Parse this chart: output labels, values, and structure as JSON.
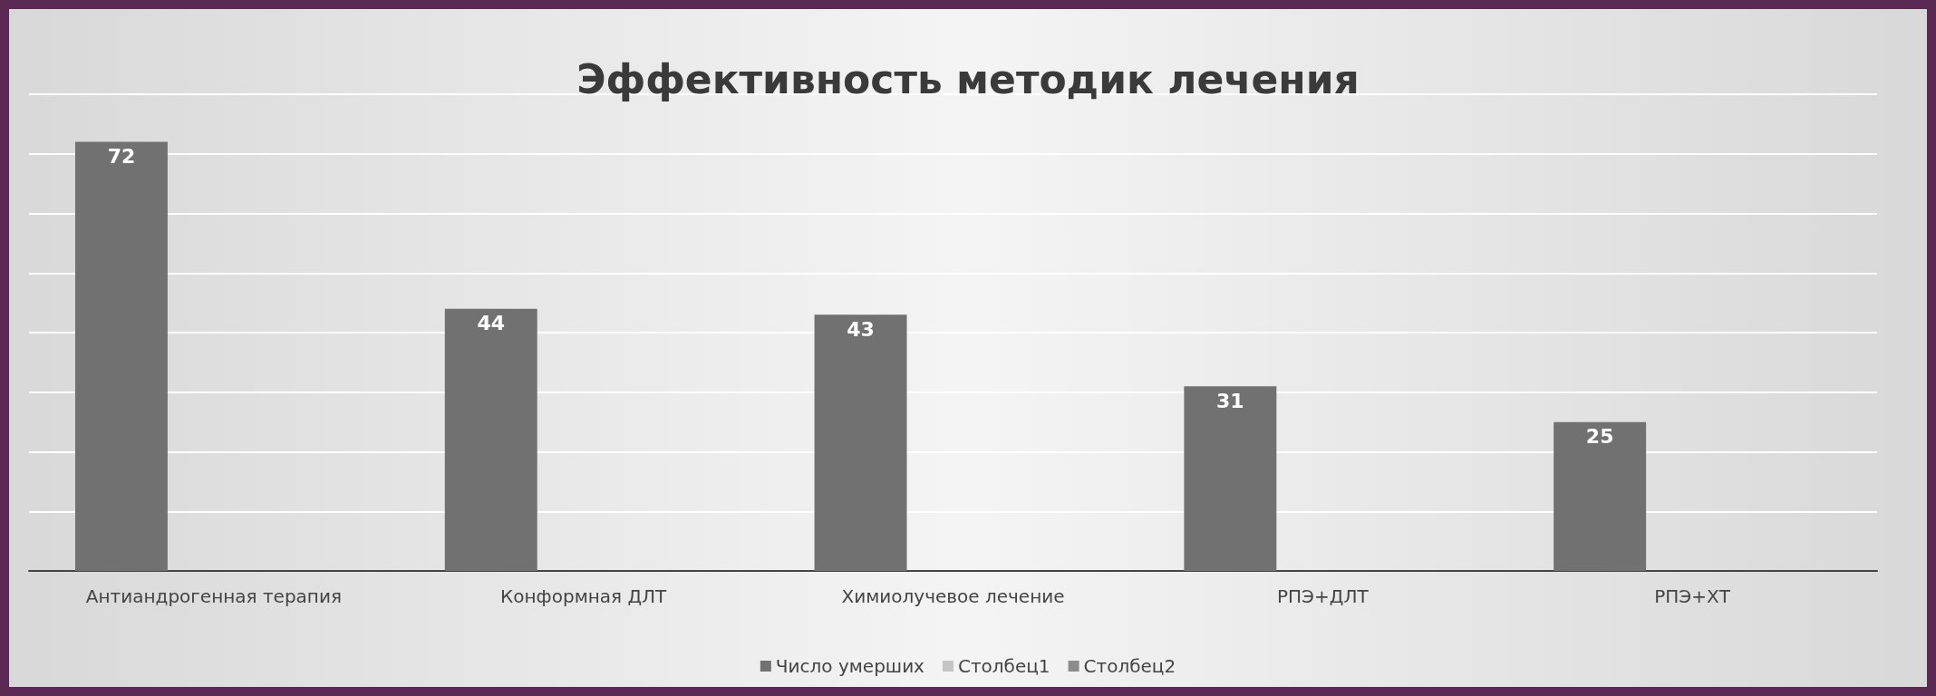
{
  "chart_data": {
    "type": "bar",
    "title": "Эффективность методик лечения",
    "categories": [
      "Антиандрогенная терапия",
      "Конформная ДЛТ",
      "Химиолучевое лечение",
      "РПЭ+ДЛТ",
      "РПЭ+ХТ"
    ],
    "series": [
      {
        "name": "Число умерших",
        "color": "#717171",
        "values": [
          72,
          44,
          43,
          31,
          25
        ]
      },
      {
        "name": "Столбец1",
        "color": "#c4c4c4",
        "values": [
          null,
          null,
          null,
          null,
          null
        ]
      },
      {
        "name": "Столбец2",
        "color": "#8c8c8c",
        "values": [
          null,
          null,
          null,
          null,
          null
        ]
      }
    ],
    "ylim": [
      0,
      80
    ],
    "yticks": [
      0,
      10,
      20,
      30,
      40,
      50,
      60,
      70,
      80
    ],
    "tick_labels": "x",
    "grid": "y",
    "legend": "bottom",
    "data_labels": true
  }
}
